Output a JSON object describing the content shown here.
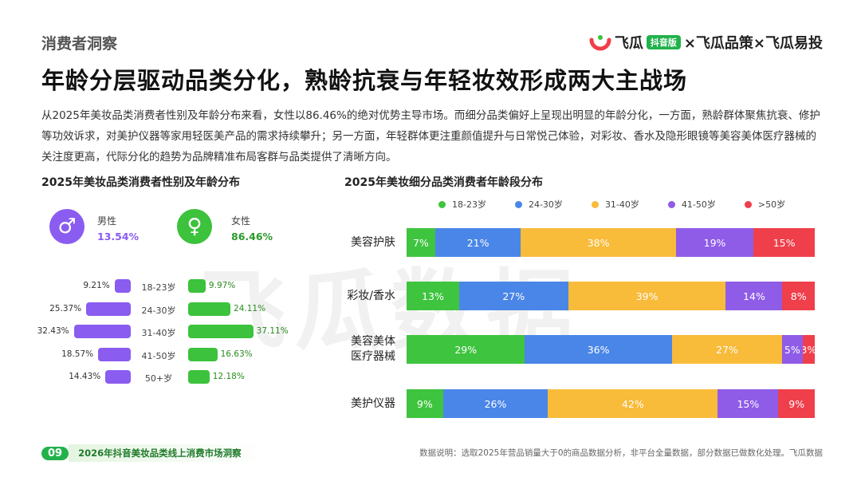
{
  "watermark": "飞瓜数据",
  "header": {
    "section": "消费者洞察",
    "title": "年龄分层驱动品类分化，熟龄抗衰与年轻妆效形成两大主战场",
    "brand": {
      "part1": "飞瓜",
      "badge": "抖音版",
      "part2": "×飞瓜品策×飞瓜易投"
    },
    "description": "从2025年美妆品类消费者性别及年龄分布来看，女性以86.46%的绝对优势主导市场。而细分品类偏好上呈现出明显的年龄分化，一方面，熟龄群体聚焦抗衰、修护等功效诉求，对美护仪器等家用轻医美产品的需求持续攀升；另一方面，年轻群体更注重颜值提升与日常悦己体验，对彩妆、香水及隐形眼镜等美容美体医疗器械的关注度更高，代际分化的趋势为品牌精准布局客群与品类提供了清晰方向。"
  },
  "left_chart": {
    "title": "2025年美妆品类消费者性别及年龄分布",
    "male": {
      "label": "男性",
      "value": "13.54%",
      "icon": "male-icon",
      "color": "#8a5cf0"
    },
    "female": {
      "label": "女性",
      "value": "86.46%",
      "icon": "female-icon",
      "color": "#3cc23c"
    }
  },
  "right_chart": {
    "title": "2025年美妆细分品类消费者年龄段分布"
  },
  "chart_data": [
    {
      "type": "bar",
      "title": "2025年美妆品类消费者性别及年龄分布",
      "categories": [
        "18-23岁",
        "24-30岁",
        "31-40岁",
        "41-50岁",
        "50+岁"
      ],
      "series": [
        {
          "name": "男性",
          "values": [
            9.21,
            25.37,
            32.43,
            18.57,
            14.43
          ],
          "color": "#8a5cf0"
        },
        {
          "name": "女性",
          "values": [
            9.97,
            24.11,
            37.11,
            16.63,
            12.18
          ],
          "color": "#3cc23c"
        }
      ]
    },
    {
      "type": "bar",
      "stacked": true,
      "orientation": "horizontal",
      "title": "2025年美妆细分品类消费者年龄段分布",
      "categories": [
        "美容护肤",
        "彩妆/香水",
        "美容美体医疗器械",
        "美护仪器"
      ],
      "category_lines": [
        [
          "美容护肤"
        ],
        [
          "彩妆/香水"
        ],
        [
          "美容美体",
          "医疗器械"
        ],
        [
          "美护仪器"
        ]
      ],
      "series": [
        {
          "name": "18-23岁",
          "color": "#3ec43e",
          "values": [
            7,
            13,
            29,
            9
          ]
        },
        {
          "name": "24-30岁",
          "color": "#4a86e8",
          "values": [
            21,
            27,
            36,
            26
          ]
        },
        {
          "name": "31-40岁",
          "color": "#f8bb3a",
          "values": [
            38,
            39,
            27,
            42
          ]
        },
        {
          "name": "41-50岁",
          "color": "#8f5ce8",
          "values": [
            19,
            14,
            5,
            15
          ]
        },
        {
          "name": ">50岁",
          "color": "#ef3f4a",
          "values": [
            15,
            8,
            3,
            9
          ]
        }
      ],
      "legend_position": "top"
    }
  ],
  "footer": {
    "page": "09",
    "report": "2026年抖音美妆品类线上消费市场洞察",
    "note": "数据说明：选取2025年营品销量大于0的商品数据分析，非平台全量数据，部分数据已做数化处理。飞瓜数据"
  }
}
